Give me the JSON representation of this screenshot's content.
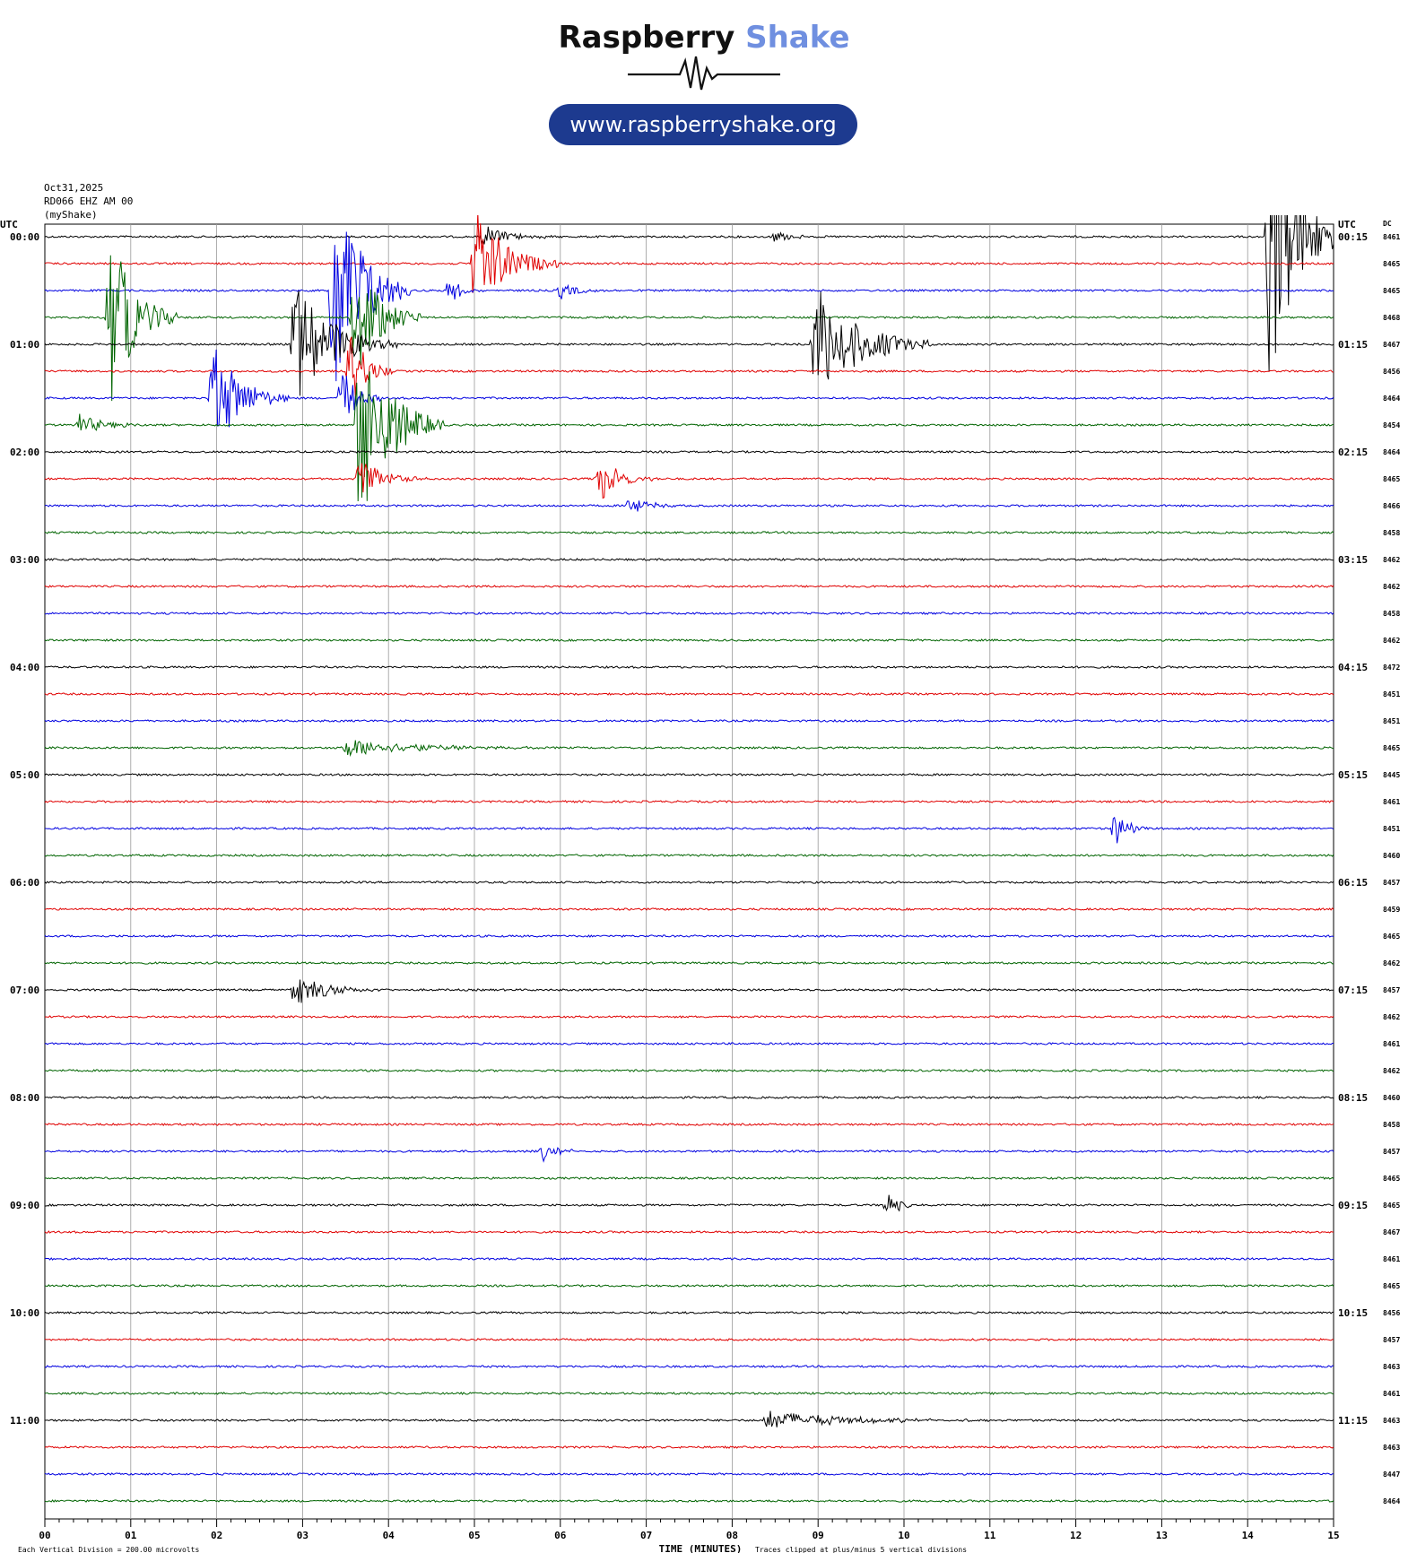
{
  "header": {
    "brand_main": "Raspberry",
    "brand_accent": "Shake",
    "url": "www.raspberryshake.org"
  },
  "station": {
    "date": "Oct31,2025",
    "channel": "RD066 EHZ AM 00",
    "network": "(myShake)"
  },
  "chart_data": {
    "type": "helicorder",
    "left_header": "UTC",
    "right_header": "UTC",
    "dc_header": "DC",
    "xlabel": "TIME (MINUTES)",
    "xlim": [
      0,
      15
    ],
    "x_ticks": [
      "00",
      "01",
      "02",
      "03",
      "04",
      "05",
      "06",
      "07",
      "08",
      "09",
      "10",
      "11",
      "12",
      "13",
      "14",
      "15"
    ],
    "line_colors": [
      "#000000",
      "#e00000",
      "#0000e0",
      "#006400"
    ],
    "left_hour_labels": [
      "00:00",
      "01:00",
      "02:00",
      "03:00",
      "04:00",
      "05:00",
      "06:00",
      "07:00",
      "08:00",
      "09:00",
      "10:00",
      "11:00"
    ],
    "right_hour_labels": [
      "00:15",
      "01:15",
      "02:15",
      "03:15",
      "04:15",
      "05:15",
      "06:15",
      "07:15",
      "08:15",
      "09:15",
      "10:15",
      "11:15"
    ],
    "dc_values": [
      8461,
      8465,
      8465,
      8468,
      8467,
      8456,
      8464,
      8454,
      8464,
      8465,
      8466,
      8458,
      8462,
      8462,
      8458,
      8462,
      8472,
      8451,
      8451,
      8465,
      8445,
      8461,
      8451,
      8460,
      8457,
      8459,
      8465,
      8462,
      8457,
      8462,
      8461,
      8462,
      8460,
      8458,
      8457,
      8465,
      8465,
      8467,
      8461,
      8465,
      8456,
      8457,
      8463,
      8461,
      8463,
      8463,
      8447,
      8464
    ],
    "events": [
      {
        "line": 0,
        "t": 5.1,
        "amp": 0.45,
        "dur": 0.8
      },
      {
        "line": 0,
        "t": 8.5,
        "amp": 0.25,
        "dur": 0.5
      },
      {
        "line": 0,
        "t": 14.25,
        "amp": 6.0,
        "dur": 0.9
      },
      {
        "line": 1,
        "t": 5.0,
        "amp": 2.2,
        "dur": 1.0
      },
      {
        "line": 2,
        "t": 3.35,
        "amp": 5.0,
        "dur": 0.9
      },
      {
        "line": 2,
        "t": 4.7,
        "amp": 0.5,
        "dur": 0.5
      },
      {
        "line": 2,
        "t": 6.0,
        "amp": 0.35,
        "dur": 0.6
      },
      {
        "line": 3,
        "t": 0.75,
        "amp": 3.5,
        "dur": 0.8
      },
      {
        "line": 3,
        "t": 3.6,
        "amp": 2.6,
        "dur": 0.8
      },
      {
        "line": 4,
        "t": 2.9,
        "amp": 2.6,
        "dur": 1.2
      },
      {
        "line": 4,
        "t": 8.95,
        "amp": 2.4,
        "dur": 1.4
      },
      {
        "line": 5,
        "t": 3.55,
        "amp": 1.8,
        "dur": 0.5
      },
      {
        "line": 6,
        "t": 1.95,
        "amp": 2.2,
        "dur": 0.9
      },
      {
        "line": 6,
        "t": 3.45,
        "amp": 1.2,
        "dur": 0.5
      },
      {
        "line": 7,
        "t": 3.65,
        "amp": 4.0,
        "dur": 1.0
      },
      {
        "line": 7,
        "t": 0.4,
        "amp": 0.4,
        "dur": 0.8
      },
      {
        "line": 9,
        "t": 3.65,
        "amp": 0.8,
        "dur": 0.8
      },
      {
        "line": 9,
        "t": 6.45,
        "amp": 0.9,
        "dur": 0.7
      },
      {
        "line": 10,
        "t": 6.8,
        "amp": 0.4,
        "dur": 0.6
      },
      {
        "line": 19,
        "t": 3.5,
        "amp": 0.35,
        "dur": 2.4
      },
      {
        "line": 22,
        "t": 12.45,
        "amp": 0.8,
        "dur": 0.4
      },
      {
        "line": 28,
        "t": 2.9,
        "amp": 0.6,
        "dur": 1.1
      },
      {
        "line": 34,
        "t": 5.8,
        "amp": 0.35,
        "dur": 0.6
      },
      {
        "line": 36,
        "t": 9.8,
        "amp": 0.55,
        "dur": 0.4
      },
      {
        "line": 44,
        "t": 8.4,
        "amp": 0.35,
        "dur": 2.6
      }
    ],
    "scale_note": "Each Vertical Division =  200.00 microvolts",
    "clip_note": "Traces clipped at plus/minus 5 vertical divisions"
  }
}
